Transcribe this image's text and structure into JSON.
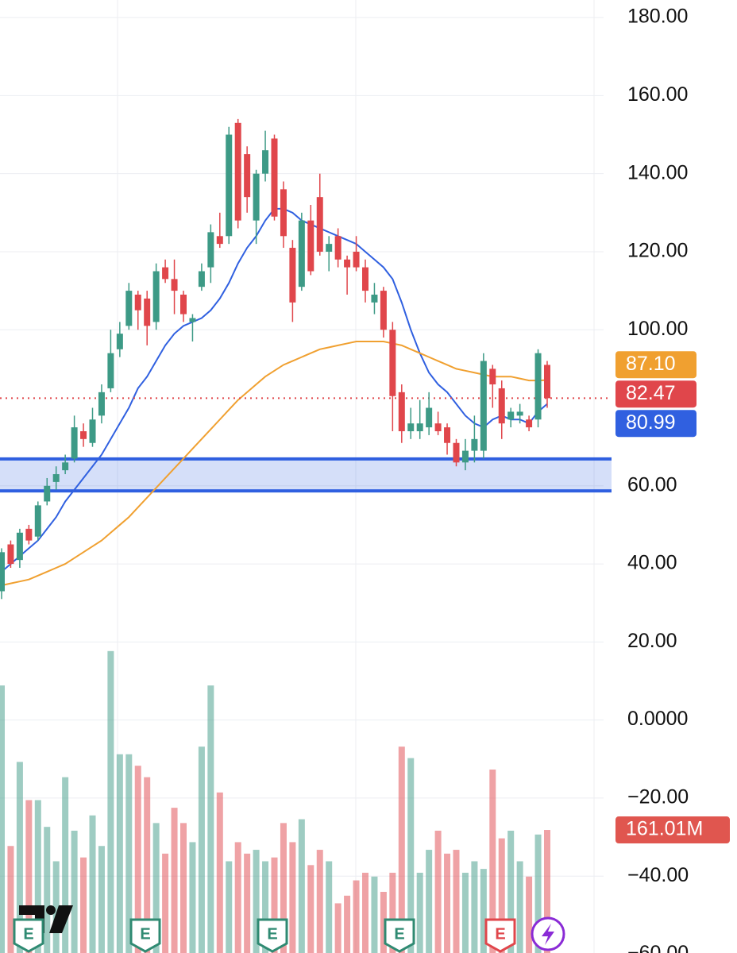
{
  "chart_data": {
    "type": "candlestick",
    "ylim": [
      -59.7,
      184.5
    ],
    "yticks": [
      {
        "value": 180,
        "label": "180.00"
      },
      {
        "value": 160,
        "label": "160.00"
      },
      {
        "value": 140,
        "label": "140.00"
      },
      {
        "value": 120,
        "label": "120.00"
      },
      {
        "value": 100,
        "label": "100.00"
      },
      {
        "value": 60,
        "label": "60.00"
      },
      {
        "value": 40,
        "label": "40.00"
      },
      {
        "value": 20,
        "label": "20.00"
      },
      {
        "value": 0,
        "label": "0.0000"
      },
      {
        "value": -20,
        "label": "−20.00"
      },
      {
        "value": -40,
        "label": "−40.00"
      },
      {
        "value": -60,
        "label": "−60.00"
      }
    ],
    "grid": true,
    "up_color": "#3d9a86",
    "down_color": "#e0464b",
    "open": [
      33,
      45,
      41,
      49,
      47,
      56,
      61,
      64,
      67,
      74,
      71,
      78,
      85,
      95,
      101,
      109,
      108,
      102,
      116,
      113,
      109,
      102,
      111,
      116,
      124,
      124,
      153,
      145,
      128,
      140,
      149,
      136,
      121,
      111,
      128,
      134,
      120,
      124,
      118,
      120,
      116,
      107,
      110,
      100,
      84,
      74,
      74,
      75,
      76,
      75,
      71,
      66,
      69,
      69,
      90,
      85,
      77,
      78,
      77,
      77,
      91
    ],
    "high": [
      44,
      46,
      49,
      50,
      56,
      62,
      65,
      68,
      78,
      76,
      80,
      86,
      100,
      102,
      112,
      110,
      110,
      117,
      118,
      118,
      110,
      104,
      117,
      127,
      130,
      152,
      154,
      147,
      141,
      151,
      150,
      138,
      123,
      130,
      132,
      140,
      124,
      126,
      119,
      124,
      118,
      112,
      111,
      102,
      86,
      80,
      82,
      84,
      79,
      76,
      72,
      72,
      78,
      94,
      91,
      87,
      80,
      81,
      78,
      95,
      92
    ],
    "low": [
      31,
      39,
      39,
      45,
      46,
      55,
      59,
      63,
      66,
      70,
      70,
      76,
      84,
      93,
      100,
      100,
      96,
      100,
      112,
      104,
      102,
      97,
      110,
      112,
      121,
      122,
      126,
      130,
      122,
      138,
      128,
      121,
      102,
      110,
      114,
      119,
      115,
      116,
      109,
      115,
      107,
      104,
      98,
      74,
      71,
      72,
      72,
      73,
      73,
      68,
      65,
      64,
      66,
      67,
      80,
      72,
      75,
      76,
      74,
      75,
      80
    ],
    "close": [
      43,
      40,
      48,
      46,
      55,
      60,
      63,
      66,
      75,
      72,
      77,
      84,
      94,
      99,
      110,
      105,
      101,
      115,
      113,
      110,
      104,
      103,
      115,
      125,
      122,
      150,
      128,
      134,
      140,
      146,
      129,
      124,
      107,
      128,
      115,
      120,
      122,
      118,
      116,
      116,
      110,
      109,
      100,
      83,
      74,
      76,
      76,
      80,
      74,
      71,
      66,
      69,
      72,
      92,
      86,
      76,
      79,
      79,
      75,
      94,
      82.47
    ],
    "volume": [
      350,
      140,
      250,
      200,
      200,
      165,
      120,
      230,
      160,
      125,
      180,
      140,
      395,
      260,
      260,
      245,
      230,
      170,
      130,
      190,
      170,
      145,
      270,
      350,
      210,
      120,
      145,
      130,
      135,
      120,
      125,
      170,
      145,
      175,
      115,
      135,
      120,
      65,
      75,
      95,
      105,
      100,
      80,
      105,
      270,
      255,
      105,
      135,
      160,
      130,
      135,
      105,
      120,
      110,
      240,
      150,
      160,
      120,
      100,
      155,
      161.01
    ],
    "volume_ylim": [
      0,
      400
    ],
    "moving_averages": [
      {
        "color": "#3060e0",
        "values": [
          38,
          40,
          42,
          44,
          46,
          49,
          52,
          56,
          59,
          62,
          65,
          68,
          72,
          76,
          80,
          85,
          88,
          92,
          96,
          99,
          101,
          102,
          103,
          105,
          108,
          112,
          117,
          121,
          124,
          128,
          131,
          131,
          130,
          128,
          127,
          126,
          125,
          124,
          123,
          122,
          120,
          118,
          116,
          113,
          107,
          100,
          94,
          89,
          86,
          84,
          81,
          78,
          76,
          75,
          77,
          78,
          77,
          77,
          76,
          79,
          80.99
        ]
      },
      {
        "color": "#f0a030",
        "values": [
          34.5,
          35,
          35.5,
          36,
          37,
          38,
          39,
          40,
          41.5,
          43,
          44.5,
          46,
          48,
          50,
          52,
          54.5,
          57,
          59.5,
          62,
          64.5,
          67,
          69.5,
          72,
          74.5,
          77,
          79.5,
          82,
          84,
          86,
          88,
          89.5,
          91,
          92,
          93,
          94,
          95,
          95.5,
          96,
          96.5,
          97,
          97,
          97,
          97,
          96.5,
          96,
          95,
          94,
          93,
          92,
          91,
          90,
          89.5,
          89,
          88.5,
          88,
          88,
          88,
          87.5,
          87,
          87,
          87.1
        ]
      }
    ],
    "zone": {
      "range": [
        58.7,
        66.9
      ],
      "color": "#2f5fe0"
    },
    "price_tags": [
      {
        "value": 87.1,
        "label": "87.10",
        "color": "#f0a030"
      },
      {
        "value": 82.47,
        "label": "82.47",
        "color": "#e0464b"
      },
      {
        "value": 80.99,
        "label": "80.99",
        "color": "#3060e0"
      }
    ],
    "volume_tag": {
      "value": 161.01,
      "label": "161.01M",
      "color": "#e0564f"
    },
    "event_markers": [
      "E",
      "E",
      "E",
      "E",
      "E"
    ]
  }
}
